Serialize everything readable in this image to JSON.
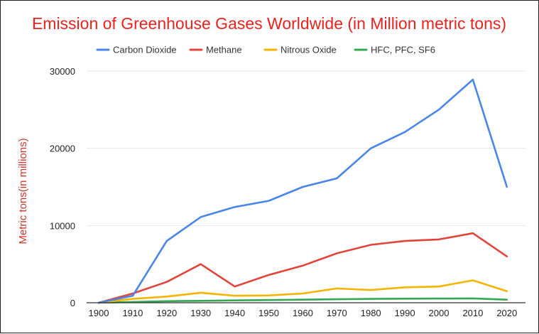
{
  "chart_data": {
    "type": "line",
    "title": "Emission of Greenhouse Gases Worldwide (in Million metric tons)",
    "xlabel": "",
    "ylabel": "Metric tons(in millions)",
    "ylim": [
      0,
      30000
    ],
    "y_ticks": [
      "0",
      "10000",
      "20000",
      "30000"
    ],
    "categories": [
      "1900",
      "1910",
      "1920",
      "1930",
      "1940",
      "1950",
      "1960",
      "1970",
      "1980",
      "1990",
      "2000",
      "2010",
      "2020"
    ],
    "grid": true,
    "legend_position": "top",
    "series": [
      {
        "name": "Carbon Dioxide",
        "color": "#4a86e8",
        "values": [
          0,
          900,
          8000,
          11100,
          12400,
          13200,
          15000,
          16100,
          20000,
          22100,
          25000,
          28900,
          15000
        ]
      },
      {
        "name": "Methane",
        "color": "#e0443a",
        "values": [
          0,
          1200,
          2700,
          5000,
          2100,
          3600,
          4800,
          6400,
          7500,
          8000,
          8200,
          9000,
          6000
        ]
      },
      {
        "name": "Nitrous Oxide",
        "color": "#f4b400",
        "values": [
          0,
          500,
          800,
          1300,
          900,
          950,
          1200,
          1850,
          1650,
          2000,
          2100,
          2900,
          1500
        ]
      },
      {
        "name": "HFC, PFC, SF6",
        "color": "#34a853",
        "values": [
          0,
          100,
          200,
          250,
          300,
          350,
          400,
          450,
          500,
          520,
          540,
          560,
          400
        ]
      }
    ]
  }
}
